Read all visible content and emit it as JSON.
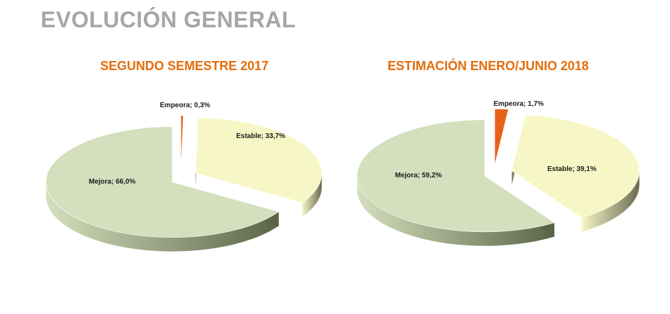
{
  "title": "EVOLUCIÓN GENERAL",
  "colors": {
    "title": "#a6a6a6",
    "subtitle": "#e46c0a",
    "mejora": "#d4dfbd",
    "mejora_side": "#5a6447",
    "estable": "#f7f6c6",
    "estable_side": "#6a6a52",
    "empeora": "#e8611a",
    "empeora_side": "#a03c0c"
  },
  "chart_data": [
    {
      "type": "pie",
      "title": "SEGUNDO SEMESTRE 2017",
      "categories": [
        "Mejora",
        "Estable",
        "Empeora"
      ],
      "values": [
        66.0,
        33.7,
        0.3
      ],
      "labels": [
        "Mejora; 66,0%",
        "Estable; 33,7%",
        "Empeora; 0,3%"
      ],
      "exploded": true,
      "style": "3d"
    },
    {
      "type": "pie",
      "title": "ESTIMACIÓN ENERO/JUNIO 2018",
      "categories": [
        "Mejora",
        "Estable",
        "Empeora"
      ],
      "values": [
        59.2,
        39.1,
        1.7
      ],
      "labels": [
        "Mejora; 59,2%",
        "Estable; 39,1%",
        "Empeora; 1,7%"
      ],
      "exploded": true,
      "style": "3d"
    }
  ]
}
